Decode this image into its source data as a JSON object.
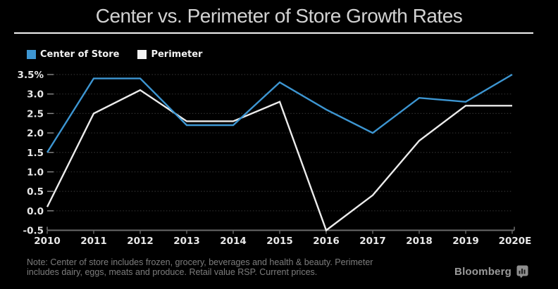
{
  "header": {
    "title": "Center vs. Perimeter of Store Growth Rates"
  },
  "legend": {
    "items": [
      {
        "label": "Center of Store",
        "color": "#3d96d2"
      },
      {
        "label": "Perimeter",
        "color": "#f2f2f2"
      }
    ]
  },
  "chart_data": {
    "type": "line",
    "title": "Center vs. Perimeter of Store Growth Rates",
    "categories": [
      "2010",
      "2011",
      "2012",
      "2013",
      "2014",
      "2015",
      "2016",
      "2017",
      "2018",
      "2019",
      "2020E"
    ],
    "series": [
      {
        "name": "Center of Store",
        "color": "#3d96d2",
        "values": [
          1.5,
          3.4,
          3.4,
          2.2,
          2.2,
          3.3,
          2.6,
          2.0,
          2.9,
          2.8,
          3.5
        ]
      },
      {
        "name": "Perimeter",
        "color": "#ececec",
        "values": [
          0.1,
          2.5,
          3.1,
          2.3,
          2.3,
          2.8,
          -0.5,
          0.4,
          1.8,
          2.7,
          2.7
        ]
      }
    ],
    "xlabel": "",
    "ylabel": "",
    "ylim": [
      -0.5,
      3.5
    ],
    "ytick_step": 0.5,
    "ytick_top_suffix": "%",
    "grid": "horizontal-dotted",
    "legend_position": "top-left",
    "colors": {
      "background": "#000000",
      "gridline": "#2f2f2f",
      "axis": "#6a6a6a",
      "tick_label": "#e8e8e8"
    }
  },
  "note": {
    "lines": [
      "Note: Center of store includes frozen, grocery, beverages and health & beauty. Perimeter",
      "includes dairy, eggs, meats and produce. Retail value RSP. Current prices."
    ]
  },
  "footer": {
    "brand": "Bloomberg",
    "logo_icon": "bloomberg-terminal-icon"
  }
}
